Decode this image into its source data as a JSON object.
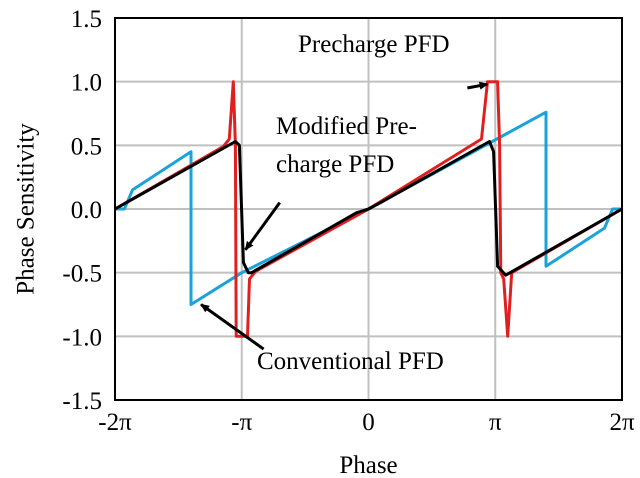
{
  "chart_data": {
    "type": "line",
    "xlabel": "Phase",
    "ylabel": "Phase Sensitivity",
    "xlim": [
      -6.2832,
      6.2832
    ],
    "ylim": [
      -1.5,
      1.5
    ],
    "grid": true,
    "x_ticks": [
      {
        "value": -6.2832,
        "label": "-2π"
      },
      {
        "value": -3.1416,
        "label": "-π"
      },
      {
        "value": 0,
        "label": "0"
      },
      {
        "value": 3.1416,
        "label": "π"
      },
      {
        "value": 6.2832,
        "label": "2π"
      }
    ],
    "y_ticks": [
      {
        "value": -1.5,
        "label": "-1.5"
      },
      {
        "value": -1.0,
        "label": "-1.0"
      },
      {
        "value": -0.5,
        "label": "-0.5"
      },
      {
        "value": 0.0,
        "label": "0.0"
      },
      {
        "value": 0.5,
        "label": "0.5"
      },
      {
        "value": 1.0,
        "label": "1.0"
      },
      {
        "value": 1.5,
        "label": "1.5"
      }
    ],
    "series": [
      {
        "name": "Conventional PFD",
        "color": "#1aa3d9",
        "points": [
          [
            -6.2832,
            0.0
          ],
          [
            -6.05,
            0.0
          ],
          [
            -5.85,
            0.15
          ],
          [
            -4.4,
            0.45
          ],
          [
            -4.4,
            -0.75
          ],
          [
            -3.14,
            -0.5
          ],
          [
            0.0,
            0.0
          ],
          [
            4.4,
            0.76
          ],
          [
            4.4,
            -0.45
          ],
          [
            5.85,
            -0.15
          ],
          [
            6.05,
            0.0
          ],
          [
            6.2832,
            0.0
          ]
        ]
      },
      {
        "name": "Precharge PFD",
        "color": "#e02020",
        "points": [
          [
            -6.2832,
            0.0
          ],
          [
            -3.6,
            0.49
          ],
          [
            -3.45,
            0.55
          ],
          [
            -3.35,
            1.0
          ],
          [
            -3.3,
            0.5
          ],
          [
            -3.28,
            -1.0
          ],
          [
            -3.0,
            -1.0
          ],
          [
            -2.95,
            -0.55
          ],
          [
            -2.8,
            -0.49
          ],
          [
            0.0,
            0.0
          ],
          [
            2.8,
            0.55
          ],
          [
            2.95,
            1.0
          ],
          [
            3.2,
            1.0
          ],
          [
            3.25,
            0.5
          ],
          [
            3.28,
            -0.5
          ],
          [
            3.35,
            -0.55
          ],
          [
            3.45,
            -1.0
          ],
          [
            3.55,
            -0.5
          ],
          [
            6.2832,
            0.0
          ]
        ]
      },
      {
        "name": "Modified Precharge PFD",
        "color": "#000000",
        "points": [
          [
            -6.2832,
            0.0
          ],
          [
            -3.3,
            0.53
          ],
          [
            -3.2,
            0.5
          ],
          [
            -3.1,
            -0.42
          ],
          [
            -2.98,
            -0.5
          ],
          [
            -2.9,
            -0.5
          ],
          [
            -0.3,
            -0.03
          ],
          [
            0.0,
            0.0
          ],
          [
            0.3,
            0.05
          ],
          [
            3.0,
            0.53
          ],
          [
            3.1,
            0.45
          ],
          [
            3.2,
            -0.45
          ],
          [
            3.4,
            -0.52
          ],
          [
            6.2832,
            0.0
          ]
        ]
      }
    ],
    "annotations": [
      {
        "lines": [
          "Precharge PFD"
        ],
        "arrow_from": [
          2.45,
          0.95
        ],
        "arrow_to": [
          2.95,
          0.98
        ]
      },
      {
        "lines": [
          "Modified Pre-",
          "charge PFD"
        ],
        "arrow_from": [
          -2.2,
          0.05
        ],
        "arrow_to": [
          -3.05,
          -0.32
        ]
      },
      {
        "lines": [
          "Conventional PFD"
        ],
        "arrow_from": [
          -2.6,
          -1.1
        ],
        "arrow_to": [
          -4.15,
          -0.75
        ]
      }
    ]
  }
}
